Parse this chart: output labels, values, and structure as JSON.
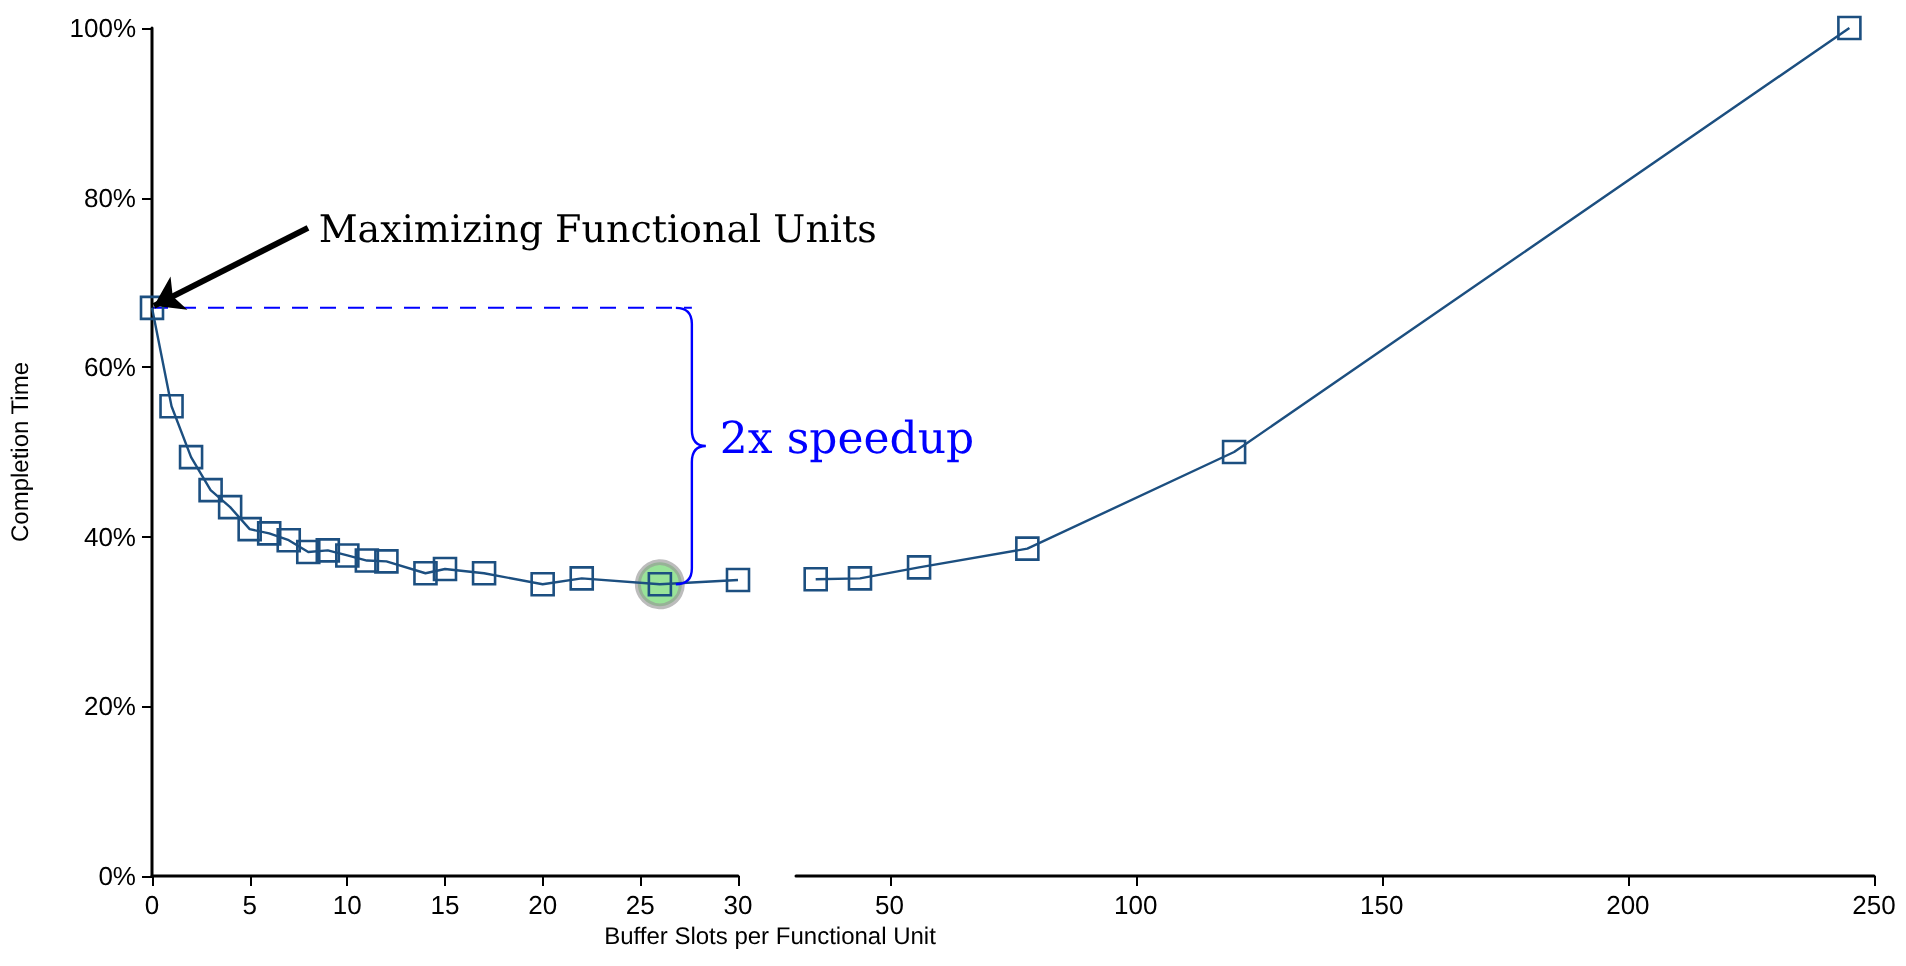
{
  "chart_data": [
    {
      "type": "line",
      "xlabel": "Buffer Slots per Functional Unit",
      "ylabel": "Completion Time",
      "series": [
        {
          "color": "#1c4f80",
          "x": [
            0,
            1,
            2,
            3,
            4,
            5,
            6,
            7,
            8,
            9,
            10,
            11,
            12,
            14,
            15,
            17,
            20,
            22,
            26,
            30
          ],
          "values": [
            67,
            55.4,
            49.4,
            45.5,
            43.5,
            40.9,
            40.4,
            39.6,
            38.2,
            38.4,
            37.8,
            37.2,
            37.1,
            35.7,
            36.2,
            35.7,
            34.4,
            35.1,
            34.4,
            34.9
          ]
        },
        {
          "type": "scatter",
          "marker": "circle",
          "color": "#7fdc7f",
          "x": [
            26
          ],
          "values": [
            34.4
          ]
        }
      ],
      "xlim": [
        0,
        30
      ],
      "xticks": [
        0,
        5,
        10,
        15,
        20,
        25,
        30
      ],
      "ylim": [
        0,
        100
      ],
      "yticks": [
        {
          "value": 0,
          "label": "0%"
        },
        {
          "value": 20,
          "label": "20%"
        },
        {
          "value": 40,
          "label": "40%"
        },
        {
          "value": 60,
          "label": "60%"
        },
        {
          "value": 80,
          "label": "80%"
        },
        {
          "value": 100,
          "label": "100%"
        }
      ],
      "ref_lines": [
        {
          "axis": "y",
          "value": 67,
          "color": "#0000ff",
          "line_style": "dashed"
        }
      ],
      "annotations": [
        {
          "text": "Maximizing Functional Units",
          "x": 0,
          "y": 67
        },
        "2x speedup"
      ],
      "marker": "square",
      "line_style": "solid",
      "grid": false
    },
    {
      "type": "line",
      "series": [
        {
          "color": "#1c4f80",
          "x": [
            35,
            44,
            56,
            78,
            120,
            245
          ],
          "values": [
            35.0,
            35.1,
            36.4,
            38.6,
            50.0,
            100
          ]
        }
      ],
      "xlim": [
        31,
        250
      ],
      "xticks": [
        50,
        100,
        150,
        200,
        250
      ],
      "ylim": [
        0,
        100
      ],
      "tick_labels": "x",
      "marker": "square",
      "line_style": "solid",
      "grid": false
    }
  ]
}
